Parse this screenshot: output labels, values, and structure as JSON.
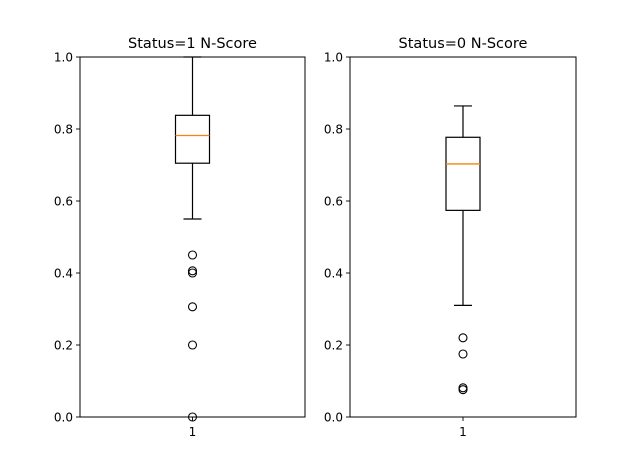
{
  "chart_data": [
    {
      "type": "box",
      "title": "Status=1 N-Score",
      "categories": [
        "1"
      ],
      "ylim": [
        0.0,
        1.0
      ],
      "yticks": [
        "0.0",
        "0.2",
        "0.4",
        "0.6",
        "0.8",
        "1.0"
      ],
      "grid": false,
      "box": {
        "whisker_low": 0.55,
        "q1": 0.705,
        "median": 0.782,
        "q3": 0.838,
        "whisker_high": 1.0,
        "outliers": [
          0.45,
          0.406,
          0.4,
          0.306,
          0.2,
          0.0
        ]
      }
    },
    {
      "type": "box",
      "title": "Status=0 N-Score",
      "categories": [
        "1"
      ],
      "ylim": [
        0.0,
        1.0
      ],
      "yticks": [
        "0.0",
        "0.2",
        "0.4",
        "0.6",
        "0.8",
        "1.0"
      ],
      "grid": false,
      "box": {
        "whisker_low": 0.31,
        "q1": 0.574,
        "median": 0.703,
        "q3": 0.777,
        "whisker_high": 0.864,
        "outliers": [
          0.22,
          0.175,
          0.081,
          0.076
        ]
      }
    }
  ],
  "colors": {
    "median": "#ff7f0e",
    "box": "#000000",
    "axes": "#000000"
  }
}
